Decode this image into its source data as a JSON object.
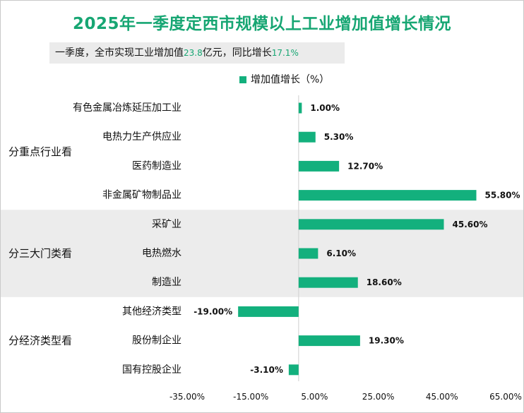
{
  "title": "2025年一季度定西市规模以上工业增加值增长情况",
  "summary": {
    "part1": "一季度，全市实现工业增加值",
    "value": "23.8",
    "part2": "亿元，同比增长",
    "growth": "17.1%"
  },
  "chart_data": {
    "type": "bar",
    "orientation": "horizontal",
    "legend": "增加值增长（%）",
    "legend_position": "top",
    "xlim": [
      -35,
      65
    ],
    "xticks": [
      "-35.00%",
      "-15.00%",
      "5.00%",
      "25.00%",
      "45.00%",
      "65.00%"
    ],
    "tick_values": [
      -35,
      -15,
      5,
      25,
      45,
      65
    ],
    "bar_color": "#13b07d",
    "groups": [
      {
        "name": "分重点行业看",
        "shaded": false,
        "categories": [
          "有色金属冶炼延压加工业",
          "电热力生产供应业",
          "医药制造业",
          "非金属矿物制品业"
        ],
        "values": [
          1.0,
          5.3,
          12.7,
          55.8
        ],
        "labels": [
          "1.00%",
          "5.30%",
          "12.70%",
          "55.80%"
        ]
      },
      {
        "name": "分三大门类看",
        "shaded": true,
        "categories": [
          "采矿业",
          "电热燃水",
          "制造业"
        ],
        "values": [
          45.6,
          6.1,
          18.6
        ],
        "labels": [
          "45.60%",
          "6.10%",
          "18.60%"
        ]
      },
      {
        "name": "分经济类型看",
        "shaded": false,
        "categories": [
          "其他经济类型",
          "股份制企业",
          "国有控股企业"
        ],
        "values": [
          -19.0,
          19.3,
          -3.1
        ],
        "labels": [
          "-19.00%",
          "19.30%",
          "-3.10%"
        ]
      }
    ]
  }
}
